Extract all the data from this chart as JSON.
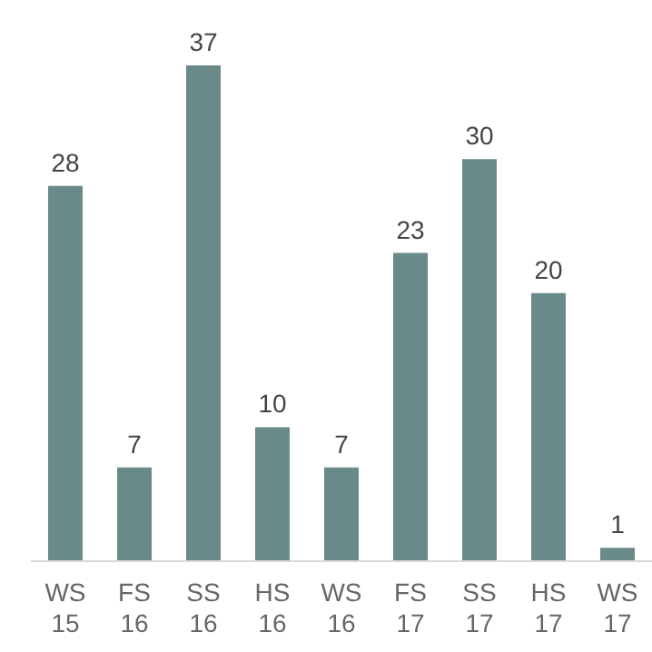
{
  "chart_data": {
    "type": "bar",
    "categories": [
      "WS 15",
      "FS 16",
      "SS 16",
      "HS 16",
      "WS 16",
      "FS 17",
      "SS 17",
      "HS 17",
      "WS 17"
    ],
    "values": [
      28,
      7,
      37,
      10,
      7,
      23,
      30,
      20,
      1
    ],
    "color": "#6a8a8a",
    "data_labels": true,
    "grid": false,
    "legend": false
  }
}
